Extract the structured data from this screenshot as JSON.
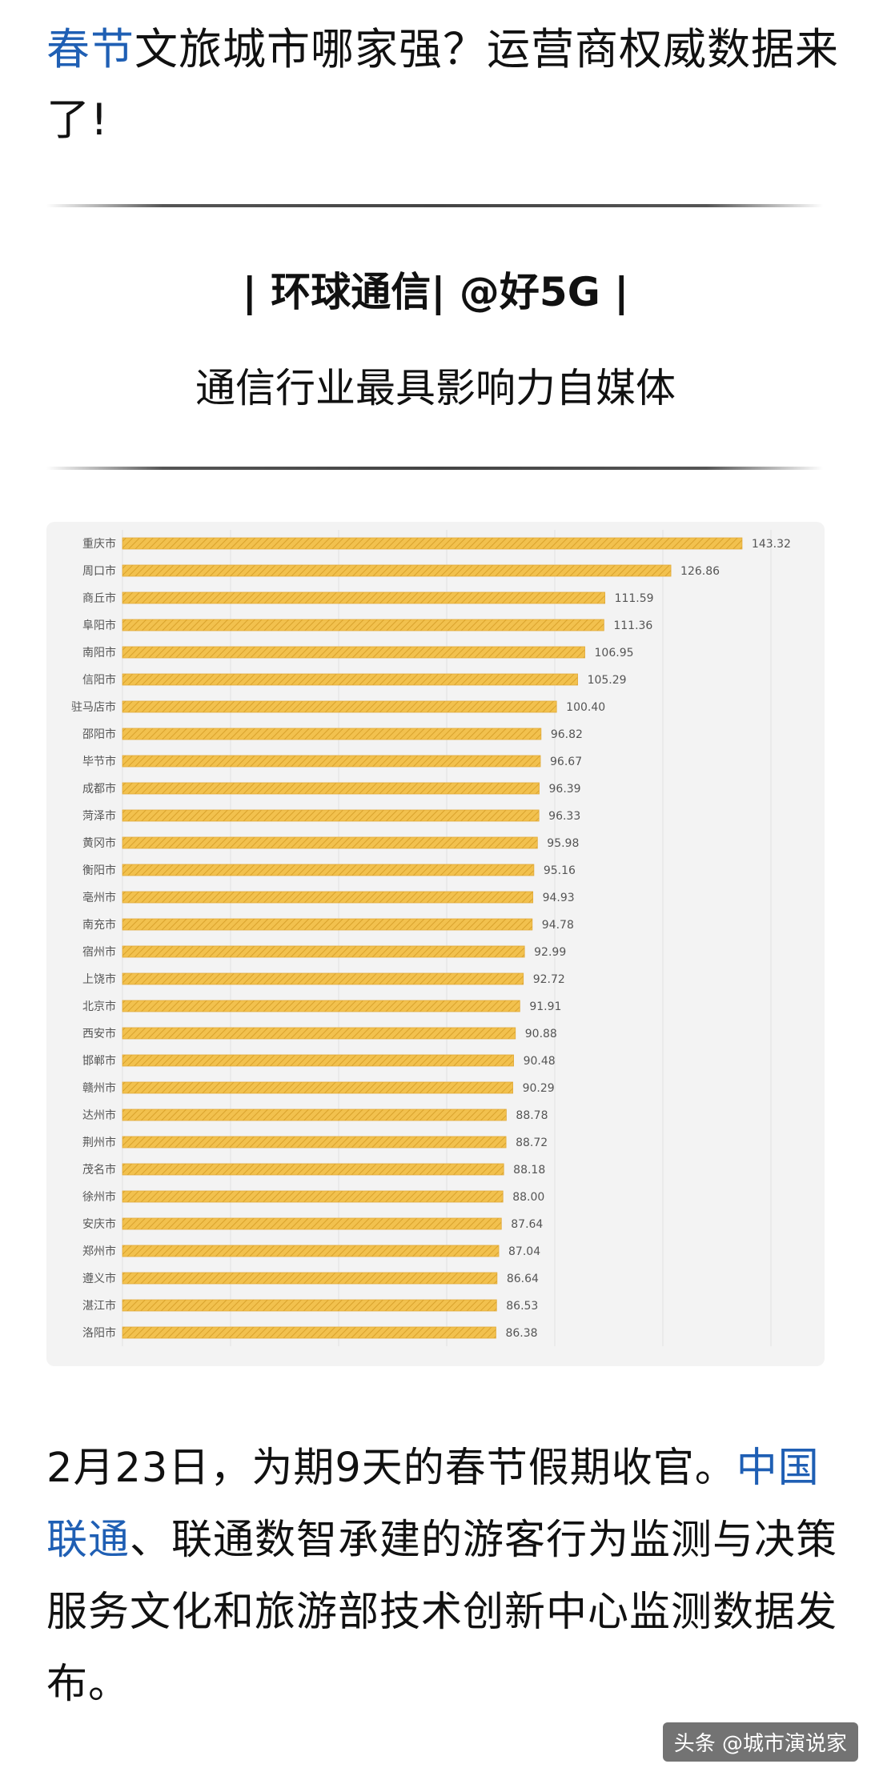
{
  "article": {
    "headline_link": "春节",
    "headline_rest": "文旅城市哪家强？运营商权威数据来了!",
    "tagline_line1": "| 环球通信| @好5G |",
    "tagline_line2": "通信行业最具影响力自媒体",
    "body_intro": "2月23日，为期9天的春节假期收官。",
    "body_link": "中国联通",
    "body_rest": "、联通数智承建的游客行为监测与决策服务文化和旅游部技术创新中心监测数据发布。"
  },
  "watermark": "头条 @城市演说家",
  "colors": {
    "link": "#1f5fb4",
    "bar_fill": "#f2c14e",
    "bar_stripe": "#d9a22c"
  },
  "chart_data": {
    "type": "bar",
    "orientation": "horizontal",
    "categories": [
      "重庆市",
      "周口市",
      "商丘市",
      "阜阳市",
      "南阳市",
      "信阳市",
      "驻马店市",
      "邵阳市",
      "毕节市",
      "成都市",
      "菏泽市",
      "黄冈市",
      "衡阳市",
      "亳州市",
      "南充市",
      "宿州市",
      "上饶市",
      "北京市",
      "西安市",
      "邯郸市",
      "赣州市",
      "达州市",
      "荆州市",
      "茂名市",
      "徐州市",
      "安庆市",
      "郑州市",
      "遵义市",
      "湛江市",
      "洛阳市"
    ],
    "values": [
      143.32,
      126.86,
      111.59,
      111.36,
      106.95,
      105.29,
      100.4,
      96.82,
      96.67,
      96.39,
      96.33,
      95.98,
      95.16,
      94.93,
      94.78,
      92.99,
      92.72,
      91.91,
      90.88,
      90.48,
      90.29,
      88.78,
      88.72,
      88.18,
      88.0,
      87.64,
      87.04,
      86.64,
      86.53,
      86.38
    ],
    "labels": [
      "143.32",
      "126.86",
      "111.59",
      "111.36",
      "106.95",
      "105.29",
      "100.40",
      "96.82",
      "96.67",
      "96.39",
      "96.33",
      "95.98",
      "95.16",
      "94.93",
      "94.78",
      "92.99",
      "92.72",
      "91.91",
      "90.88",
      "90.48",
      "90.29",
      "88.78",
      "88.72",
      "88.18",
      "88.00",
      "87.64",
      "87.04",
      "86.64",
      "86.53",
      "86.38"
    ],
    "xlim": [
      0,
      150
    ],
    "grid": true,
    "legend": "none"
  }
}
